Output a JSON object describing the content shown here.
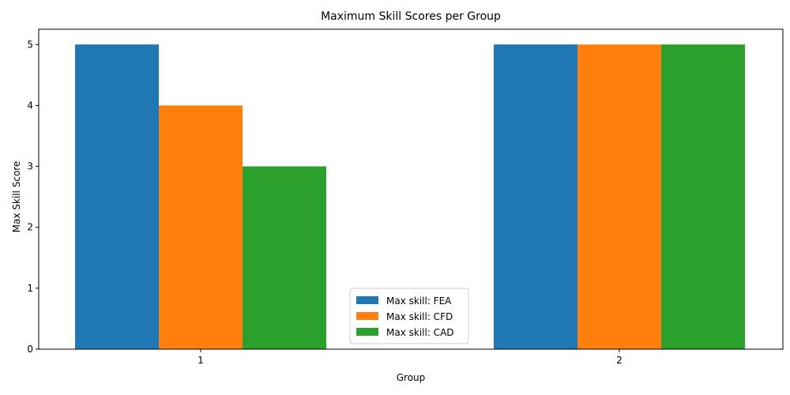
{
  "chart_data": {
    "type": "bar",
    "title": "Maximum Skill Scores per Group",
    "xlabel": "Group",
    "ylabel": "Max Skill Score",
    "categories": [
      "1",
      "2"
    ],
    "series": [
      {
        "name": "Max skill: FEA",
        "values": [
          5,
          5
        ],
        "color": "#1f77b4"
      },
      {
        "name": "Max skill: CFD",
        "values": [
          4,
          5
        ],
        "color": "#ff7f0e"
      },
      {
        "name": "Max skill: CAD",
        "values": [
          3,
          5
        ],
        "color": "#2ca02c"
      }
    ],
    "ylim": [
      0,
      5.25
    ],
    "yticks": [
      "0",
      "1",
      "2",
      "3",
      "4",
      "5"
    ],
    "grid": false,
    "legend_position": "lower-center"
  }
}
